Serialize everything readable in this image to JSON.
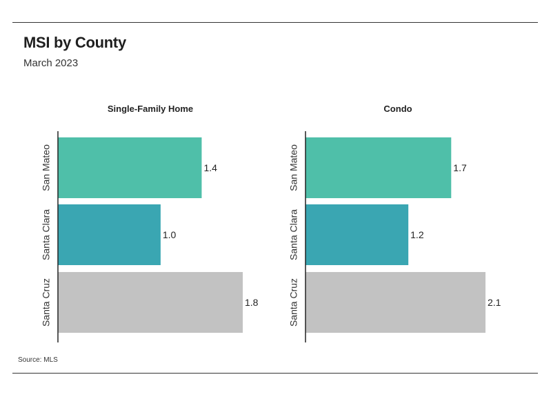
{
  "header": {
    "title": "MSI by County",
    "subtitle": "March 2023"
  },
  "footer": {
    "source": "Source: MLS"
  },
  "colors": {
    "San Mateo": "#4fbfa9",
    "Santa Clara": "#3aa6b2",
    "Santa Cruz": "#c2c2c2"
  },
  "chart_data": [
    {
      "type": "bar",
      "orientation": "horizontal",
      "title": "Single-Family Home",
      "categories": [
        "San Mateo",
        "Santa Clara",
        "Santa Cruz"
      ],
      "values": [
        1.4,
        1.0,
        1.8
      ],
      "data_labels": [
        "1.4",
        "1.0",
        "1.8"
      ],
      "xlim": [
        0,
        1.8
      ],
      "grid": false
    },
    {
      "type": "bar",
      "orientation": "horizontal",
      "title": "Condo",
      "categories": [
        "San Mateo",
        "Santa Clara",
        "Santa Cruz"
      ],
      "values": [
        1.7,
        1.2,
        2.1
      ],
      "data_labels": [
        "1.7",
        "1.2",
        "2.1"
      ],
      "xlim": [
        0,
        2.1
      ],
      "grid": false
    }
  ]
}
